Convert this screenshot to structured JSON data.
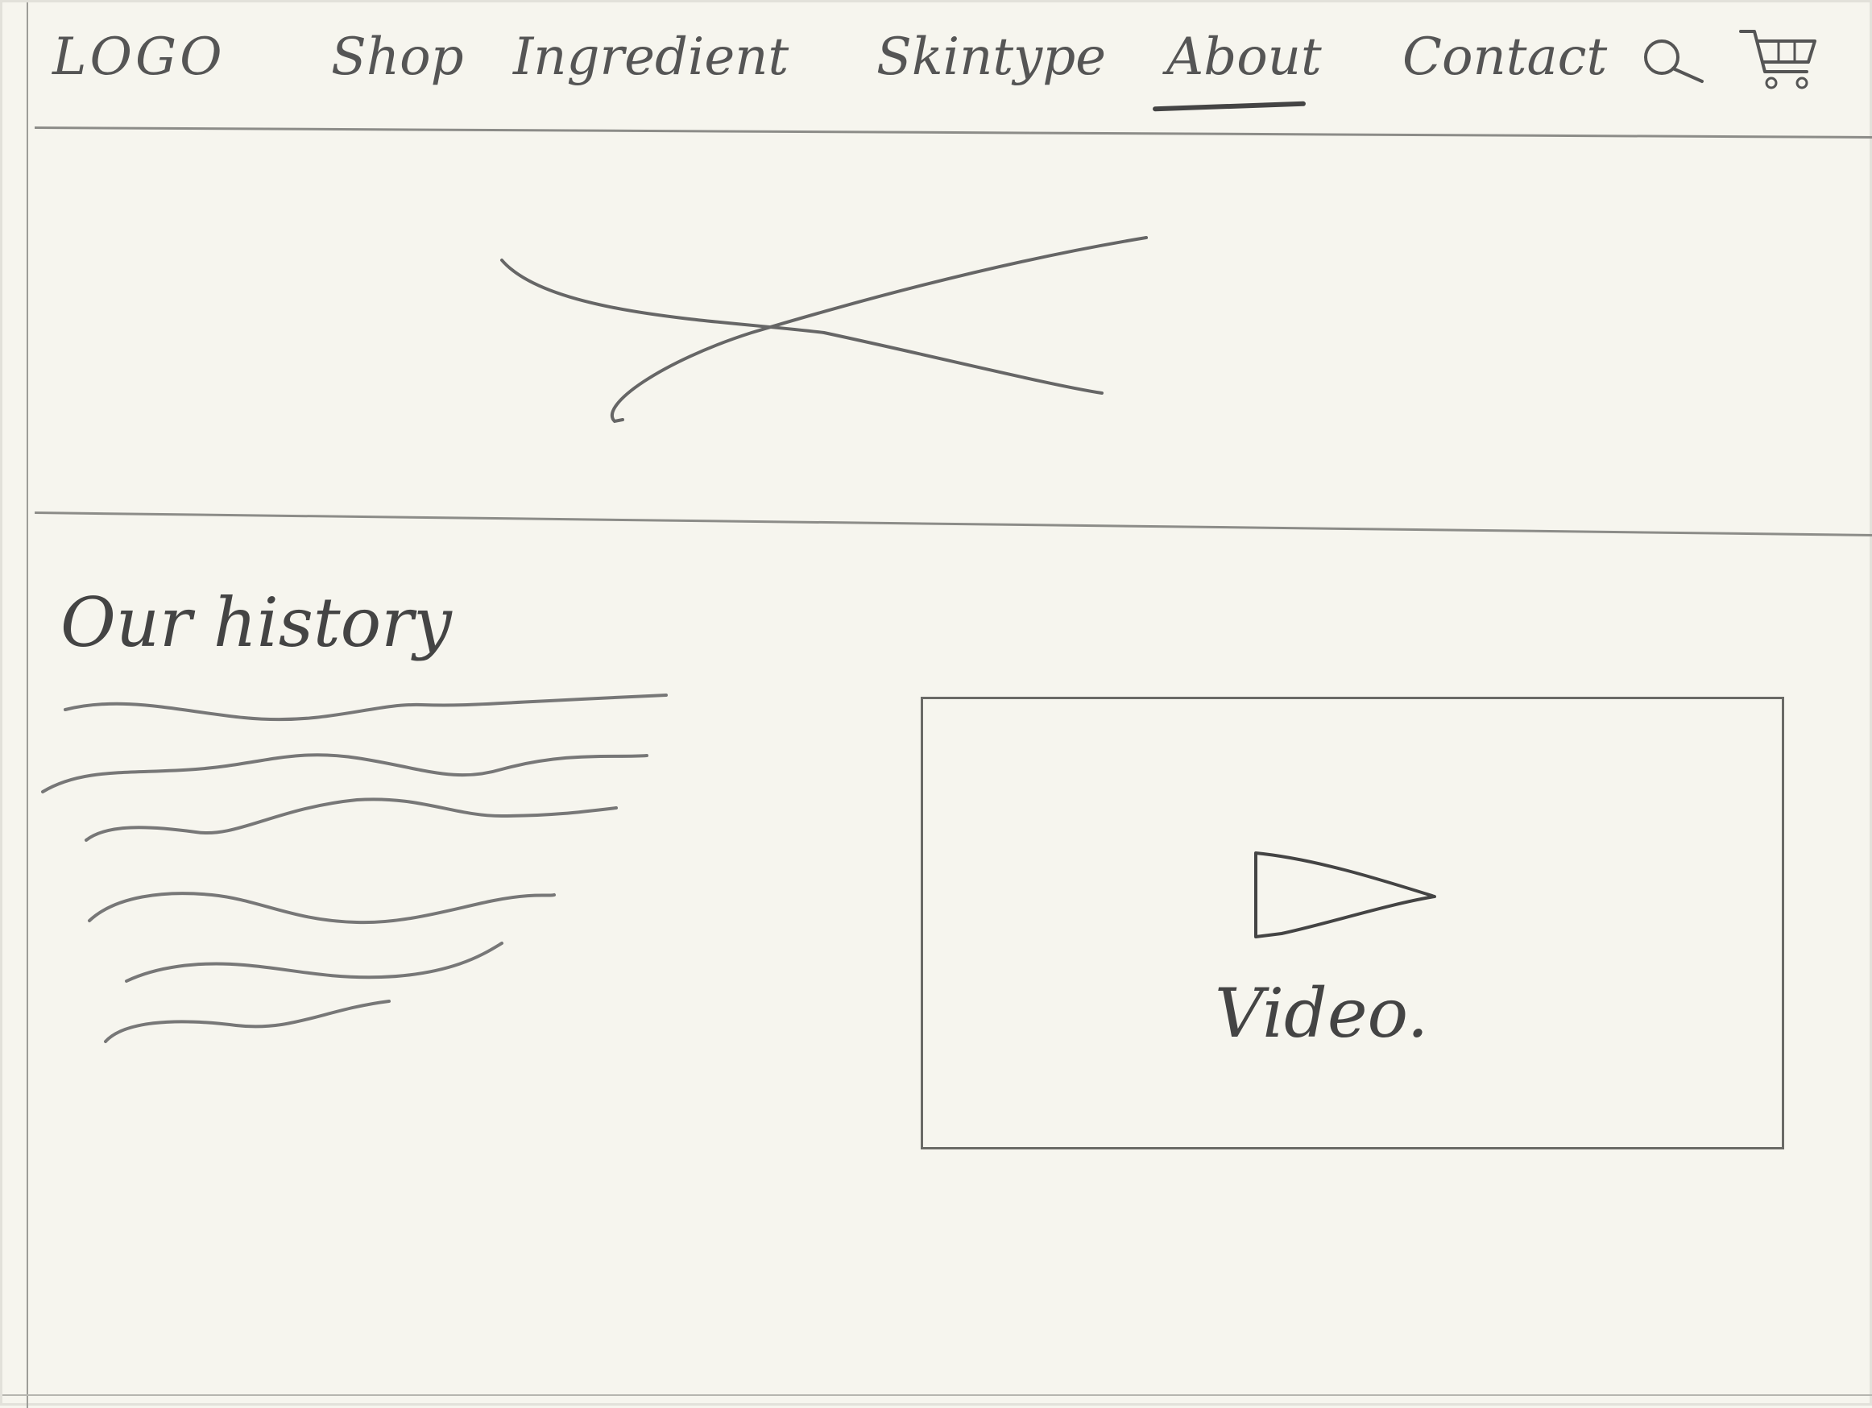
{
  "nav": {
    "logo": "LOGO",
    "items": [
      {
        "label": "Shop"
      },
      {
        "label": "Ingredient"
      },
      {
        "label": "Skintype"
      },
      {
        "label": "About"
      },
      {
        "label": "Contact"
      }
    ],
    "active": "About",
    "icons": [
      "search-icon",
      "cart-icon"
    ]
  },
  "hero": {
    "placeholder_icon": "image-placeholder-x-icon"
  },
  "history": {
    "title": "Our history",
    "text_placeholder_lines": 6
  },
  "video": {
    "label": "Video.",
    "icon": "play-icon"
  },
  "colors": {
    "paper": "#f6f5ee",
    "pencil": "#4a4a4a"
  }
}
